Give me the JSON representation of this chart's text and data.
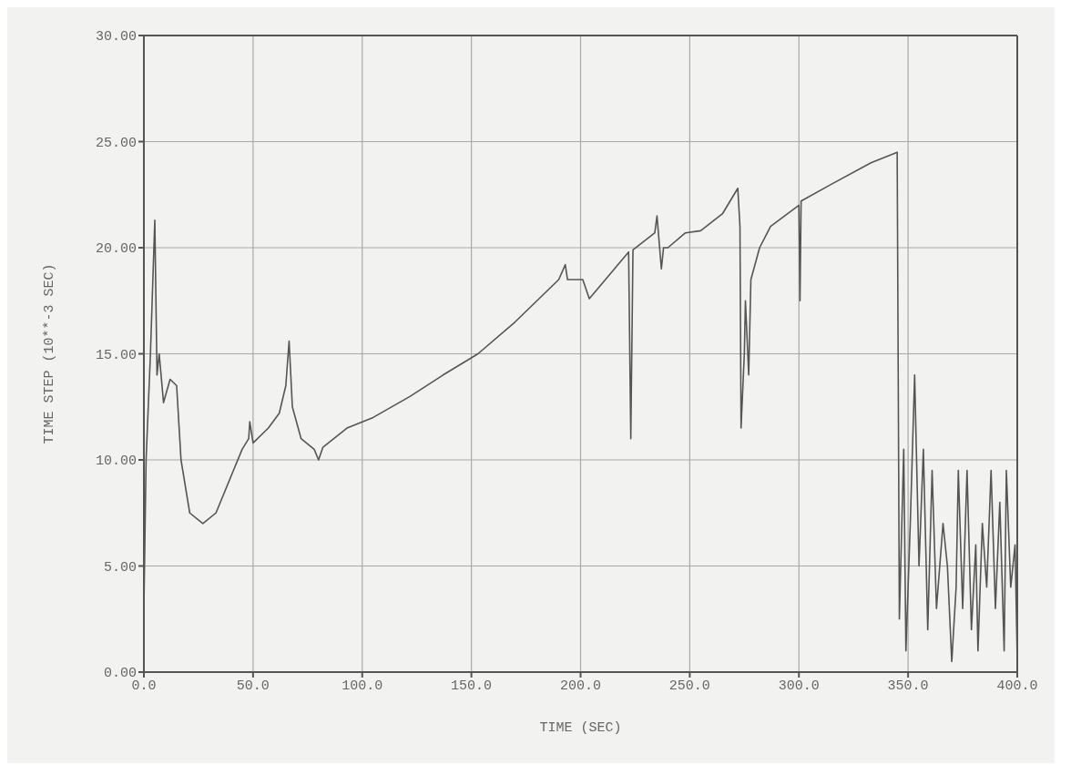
{
  "chart_data": {
    "type": "line",
    "xlabel": "TIME (SEC)",
    "ylabel": "TIME STEP (10**-3 SEC)",
    "x": [
      0,
      1,
      3,
      5,
      6,
      7,
      9,
      12,
      15,
      17,
      21,
      27,
      33,
      45,
      48,
      48.5,
      50,
      57,
      62,
      65,
      66.5,
      68,
      72,
      78,
      80,
      82,
      93,
      105,
      122,
      137,
      153,
      170,
      190,
      193,
      194,
      201,
      204,
      222,
      223,
      224,
      234,
      235,
      237,
      238,
      240,
      248,
      255,
      265,
      272,
      273,
      273.5,
      275,
      275.5,
      277,
      278,
      282,
      287,
      300,
      300.5,
      301,
      315,
      333,
      345,
      346,
      348,
      349,
      351,
      353,
      355,
      357,
      359,
      361,
      363,
      366,
      368,
      370,
      372,
      373,
      375,
      377,
      379,
      381,
      382,
      384,
      386,
      388,
      390,
      392,
      394,
      395,
      397,
      399,
      400
    ],
    "series": [
      {
        "color": "#555555",
        "values": [
          3,
          10,
          15,
          21.3,
          14,
          15,
          12.7,
          13.8,
          13.5,
          10,
          7.5,
          7,
          7.5,
          10.5,
          11,
          11.8,
          10.8,
          11.5,
          12.2,
          13.5,
          15.6,
          12.5,
          11,
          10.5,
          10,
          10.6,
          11.5,
          12,
          13,
          14,
          15,
          16.5,
          18.5,
          19.2,
          18.5,
          18.5,
          17.6,
          19.8,
          11,
          19.9,
          20.7,
          21.5,
          19,
          20,
          20,
          20.7,
          20.8,
          21.6,
          22.8,
          21,
          11.5,
          15,
          17.5,
          14,
          18.5,
          20,
          21,
          22,
          17.5,
          22.2,
          23,
          24,
          24.5,
          2.5,
          10.5,
          1,
          7,
          14,
          5,
          10.5,
          2,
          9.5,
          3,
          7,
          5,
          0.5,
          4,
          9.5,
          3,
          9.5,
          2,
          6,
          1,
          7,
          4,
          9.5,
          3,
          8,
          1,
          9.5,
          4,
          6,
          0.5
        ]
      }
    ],
    "xlim": [
      0,
      400
    ],
    "xticks": [
      {
        "value": 0,
        "label": "0.0"
      },
      {
        "value": 50,
        "label": "50.0"
      },
      {
        "value": 100,
        "label": "100.0"
      },
      {
        "value": 150,
        "label": "150.0"
      },
      {
        "value": 200,
        "label": "200.0"
      },
      {
        "value": 250,
        "label": "250.0"
      },
      {
        "value": 300,
        "label": "300.0"
      },
      {
        "value": 350,
        "label": "350.0"
      },
      {
        "value": 400,
        "label": "400.0"
      }
    ],
    "ylim": [
      0,
      30
    ],
    "yticks": [
      {
        "value": 0,
        "label": "0.00"
      },
      {
        "value": 5,
        "label": "5.00"
      },
      {
        "value": 10,
        "label": "10.00"
      },
      {
        "value": 15,
        "label": "15.00"
      },
      {
        "value": 20,
        "label": "20.00"
      },
      {
        "value": 25,
        "label": "25.00"
      },
      {
        "value": 30,
        "label": "30.00"
      }
    ],
    "grid": true,
    "marker": "none",
    "line_style": "solid"
  }
}
